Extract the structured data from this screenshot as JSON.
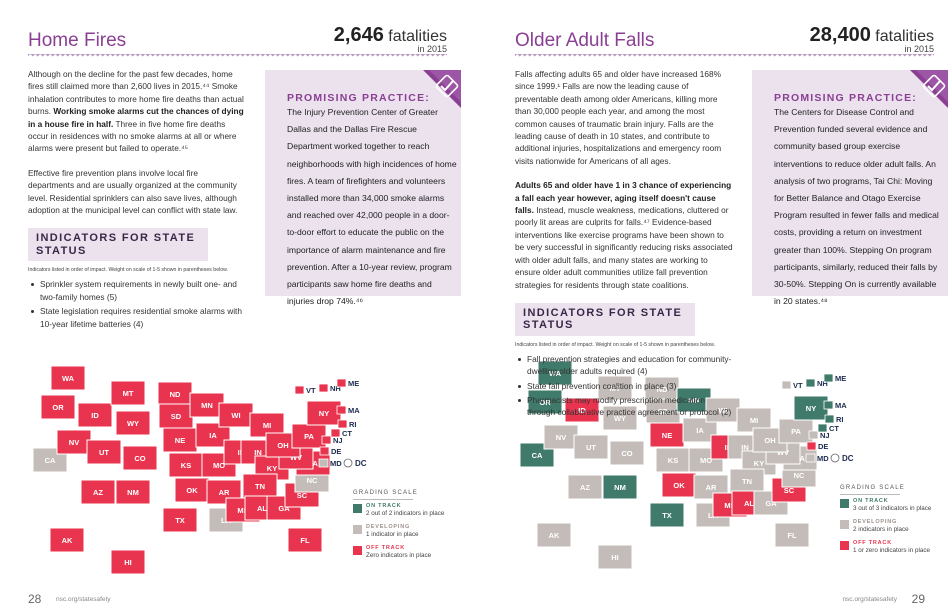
{
  "pages": [
    {
      "title": "Home Fires",
      "stat_number": "2,646",
      "stat_unit": "fatalities",
      "stat_year": "in 2015",
      "body": [
        [
          "Although on the decline for the past few decades, home fires still claimed more than 2,600 lives in 2015.⁴⁴ Smoke inhalation contributes to more home fire deaths than actual burns. ",
          {
            "text": "Working smoke alarms cut the chances of dying in a house fire in half.",
            "bold": true
          },
          " Three in five home fire deaths occur in residences with no smoke alarms at all or where alarms were present but failed to operate.⁴⁵"
        ],
        [
          "Effective fire prevention plans involve local fire departments and are usually organized at the community level. Residential sprinklers can also save lives, although adoption at the municipal level can conflict with state law."
        ]
      ],
      "practice_heading": "PROMISING PRACTICE:",
      "practice_text": "The Injury Prevention Center of Greater Dallas and the Dallas Fire Rescue Department worked together to reach neighborhoods with high incidences of home fires. A team of firefighters and volunteers installed more than 34,000 smoke alarms and reached over 42,000 people in a door-to-door effort to educate the public on the importance of alarm maintenance and fire prevention. After a 10-year review, program participants saw home fire deaths and injuries drop 74%.⁴⁶",
      "indicators_heading": "INDICATORS FOR STATE STATUS",
      "indicators_note": "Indicators listed in order of impact. Weight on scale of 1-5 shown in parentheses below.",
      "indicators": [
        "Sprinkler system requirements in newly built one- and two-family homes (5)",
        "State legislation requires residential smoke alarms with 10-year lifetime batteries (4)"
      ],
      "grading_heading": "GRADING SCALE",
      "grades": [
        {
          "label": "ON TRACK",
          "desc": "2 out of 2 indicators in place",
          "color": "#3f7a6a"
        },
        {
          "label": "DEVELOPING",
          "desc": "1 indicator in place",
          "color": "#c3bcb8"
        },
        {
          "label": "OFF TRACK",
          "desc": "Zero indicators in place",
          "color": "#e8344e"
        }
      ],
      "states": [
        {
          "code": "WA",
          "color": "#e8344e"
        },
        {
          "code": "OR",
          "color": "#e8344e"
        },
        {
          "code": "CA",
          "color": "#c3bcb8"
        },
        {
          "code": "NV",
          "color": "#e8344e"
        },
        {
          "code": "ID",
          "color": "#e8344e"
        },
        {
          "code": "MT",
          "color": "#e8344e"
        },
        {
          "code": "WY",
          "color": "#e8344e"
        },
        {
          "code": "UT",
          "color": "#e8344e"
        },
        {
          "code": "CO",
          "color": "#e8344e"
        },
        {
          "code": "AZ",
          "color": "#e8344e"
        },
        {
          "code": "NM",
          "color": "#e8344e"
        },
        {
          "code": "ND",
          "color": "#e8344e"
        },
        {
          "code": "SD",
          "color": "#e8344e"
        },
        {
          "code": "NE",
          "color": "#e8344e"
        },
        {
          "code": "KS",
          "color": "#e8344e"
        },
        {
          "code": "OK",
          "color": "#e8344e"
        },
        {
          "code": "TX",
          "color": "#e8344e"
        },
        {
          "code": "MN",
          "color": "#e8344e"
        },
        {
          "code": "IA",
          "color": "#e8344e"
        },
        {
          "code": "MO",
          "color": "#e8344e"
        },
        {
          "code": "AR",
          "color": "#e8344e"
        },
        {
          "code": "LA",
          "color": "#c3bcb8"
        },
        {
          "code": "WI",
          "color": "#e8344e"
        },
        {
          "code": "IL",
          "color": "#e8344e"
        },
        {
          "code": "MS",
          "color": "#e8344e"
        },
        {
          "code": "MI",
          "color": "#e8344e"
        },
        {
          "code": "IN",
          "color": "#e8344e"
        },
        {
          "code": "KY",
          "color": "#e8344e"
        },
        {
          "code": "TN",
          "color": "#e8344e"
        },
        {
          "code": "AL",
          "color": "#e8344e"
        },
        {
          "code": "GA",
          "color": "#e8344e"
        },
        {
          "code": "FL",
          "color": "#e8344e"
        },
        {
          "code": "SC",
          "color": "#e8344e"
        },
        {
          "code": "NC",
          "color": "#c3bcb8"
        },
        {
          "code": "VA",
          "color": "#e8344e"
        },
        {
          "code": "WV",
          "color": "#e8344e"
        },
        {
          "code": "OH",
          "color": "#e8344e"
        },
        {
          "code": "PA",
          "color": "#e8344e"
        },
        {
          "code": "NY",
          "color": "#e8344e"
        },
        {
          "code": "VT",
          "color": "#e8344e"
        },
        {
          "code": "NH",
          "color": "#e8344e"
        },
        {
          "code": "ME",
          "color": "#e8344e"
        },
        {
          "code": "MA",
          "color": "#e8344e"
        },
        {
          "code": "RI",
          "color": "#e8344e"
        },
        {
          "code": "CT",
          "color": "#e8344e"
        },
        {
          "code": "NJ",
          "color": "#e8344e"
        },
        {
          "code": "DE",
          "color": "#e8344e"
        },
        {
          "code": "MD",
          "color": "#c3bcb8"
        },
        {
          "code": "DC",
          "color": "#c3bcb8"
        },
        {
          "code": "AK",
          "color": "#e8344e"
        },
        {
          "code": "HI",
          "color": "#e8344e"
        }
      ],
      "page_number": "28",
      "url": "nsc.org/statesafety"
    },
    {
      "title": "Older Adult Falls",
      "stat_number": "28,400",
      "stat_unit": "fatalities",
      "stat_year": "in 2015",
      "body": [
        [
          "Falls affecting adults 65 and older have increased 168% since 1999.¹ Falls are now the leading cause of preventable death among older Americans, killing more than 30,000 people each year, and among the most common causes of traumatic brain injury. Falls are the leading cause of death in 10 states, and contribute to additional injuries, hospitalizations and emergency room visits nationwide for Americans of all ages."
        ],
        [
          {
            "text": "Adults 65 and older have 1 in 3 chance of experiencing a fall each year however, aging itself doesn't cause falls.",
            "bold": true
          },
          " Instead, muscle weakness, medications, cluttered or poorly lit areas are culprits for falls.⁴⁷ Evidence-based interventions like exercise programs have been shown to be very successful in significantly reducing risks associated with older adult falls, and many states are working to ensure older adult communities utilize fall prevention strategies for residents through state coalitions."
        ]
      ],
      "practice_heading": "PROMISING PRACTICE:",
      "practice_text": "The Centers for Disease Control and Prevention funded several evidence and community based group exercise interventions to reduce older adult falls. An analysis of two programs, Tai Chi: Moving for Better Balance and Otago Exercise Program resulted in fewer falls and medical costs, providing a return on investment greater than 100%. Stepping On program participants, similarly, reduced their falls by 30-50%. Stepping On is currently available in 20 states.⁴⁸",
      "indicators_heading": "INDICATORS FOR STATE STATUS",
      "indicators_note": "Indicators listed in order of impact. Weight on scale of 1-5 shown in parentheses below.",
      "indicators": [
        "Fall prevention strategies and education for community-dwelling older adults required (4)",
        "State fall prevention coalition in place (3)",
        "Pharmacists may modify prescription medication through collaborative practice agreement or protocol (2)"
      ],
      "grading_heading": "GRADING SCALE",
      "grades": [
        {
          "label": "ON TRACK",
          "desc": "3 out of 3 indicators in place",
          "color": "#3f7a6a"
        },
        {
          "label": "DEVELOPING",
          "desc": "2 indicators in place",
          "color": "#c3bcb8"
        },
        {
          "label": "OFF TRACK",
          "desc": "1 or zero indicators in place",
          "color": "#e8344e"
        }
      ],
      "states": [
        {
          "code": "WA",
          "color": "#3f7a6a"
        },
        {
          "code": "OR",
          "color": "#3f7a6a"
        },
        {
          "code": "CA",
          "color": "#3f7a6a"
        },
        {
          "code": "NV",
          "color": "#c3bcb8"
        },
        {
          "code": "ID",
          "color": "#e8344e"
        },
        {
          "code": "MT",
          "color": "#c3bcb8"
        },
        {
          "code": "WY",
          "color": "#c3bcb8"
        },
        {
          "code": "UT",
          "color": "#c3bcb8"
        },
        {
          "code": "CO",
          "color": "#c3bcb8"
        },
        {
          "code": "AZ",
          "color": "#c3bcb8"
        },
        {
          "code": "NM",
          "color": "#3f7a6a"
        },
        {
          "code": "ND",
          "color": "#c3bcb8"
        },
        {
          "code": "SD",
          "color": "#c3bcb8"
        },
        {
          "code": "NE",
          "color": "#e8344e"
        },
        {
          "code": "KS",
          "color": "#c3bcb8"
        },
        {
          "code": "OK",
          "color": "#e8344e"
        },
        {
          "code": "TX",
          "color": "#3f7a6a"
        },
        {
          "code": "MN",
          "color": "#3f7a6a"
        },
        {
          "code": "IA",
          "color": "#c3bcb8"
        },
        {
          "code": "MO",
          "color": "#c3bcb8"
        },
        {
          "code": "AR",
          "color": "#c3bcb8"
        },
        {
          "code": "LA",
          "color": "#c3bcb8"
        },
        {
          "code": "WI",
          "color": "#c3bcb8"
        },
        {
          "code": "IL",
          "color": "#e8344e"
        },
        {
          "code": "MS",
          "color": "#e8344e"
        },
        {
          "code": "MI",
          "color": "#c3bcb8"
        },
        {
          "code": "IN",
          "color": "#c3bcb8"
        },
        {
          "code": "KY",
          "color": "#c3bcb8"
        },
        {
          "code": "TN",
          "color": "#c3bcb8"
        },
        {
          "code": "AL",
          "color": "#e8344e"
        },
        {
          "code": "GA",
          "color": "#c3bcb8"
        },
        {
          "code": "FL",
          "color": "#c3bcb8"
        },
        {
          "code": "SC",
          "color": "#e8344e"
        },
        {
          "code": "NC",
          "color": "#c3bcb8"
        },
        {
          "code": "VA",
          "color": "#c3bcb8"
        },
        {
          "code": "WV",
          "color": "#c3bcb8"
        },
        {
          "code": "OH",
          "color": "#c3bcb8"
        },
        {
          "code": "PA",
          "color": "#c3bcb8"
        },
        {
          "code": "NY",
          "color": "#3f7a6a"
        },
        {
          "code": "VT",
          "color": "#c3bcb8"
        },
        {
          "code": "NH",
          "color": "#3f7a6a"
        },
        {
          "code": "ME",
          "color": "#3f7a6a"
        },
        {
          "code": "MA",
          "color": "#3f7a6a"
        },
        {
          "code": "RI",
          "color": "#3f7a6a"
        },
        {
          "code": "CT",
          "color": "#3f7a6a"
        },
        {
          "code": "NJ",
          "color": "#c3bcb8"
        },
        {
          "code": "DE",
          "color": "#e8344e"
        },
        {
          "code": "MD",
          "color": "#c3bcb8"
        },
        {
          "code": "DC",
          "color": "#c3bcb8"
        },
        {
          "code": "AK",
          "color": "#c3bcb8"
        },
        {
          "code": "HI",
          "color": "#c3bcb8"
        }
      ],
      "page_number": "29",
      "url": "nsc.org/statesafety"
    }
  ]
}
